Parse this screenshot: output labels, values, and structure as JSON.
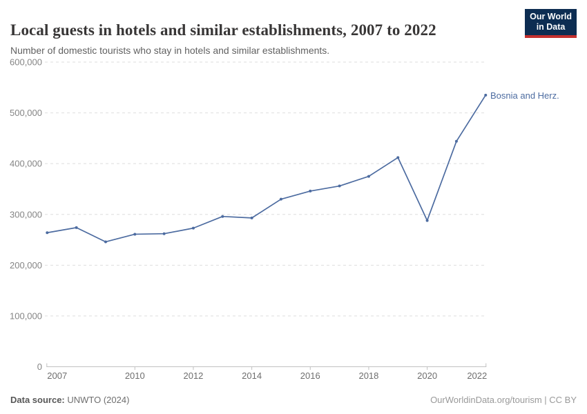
{
  "header": {
    "title": "Local guests in hotels and similar establishments, 2007 to 2022",
    "subtitle": "Number of domestic tourists who stay in hotels and similar establishments.",
    "logo": {
      "line1": "Our World",
      "line2": "in Data"
    }
  },
  "chart_data": {
    "type": "line",
    "title": "Local guests in hotels and similar establishments, 2007 to 2022",
    "x": [
      2007,
      2008,
      2009,
      2010,
      2011,
      2012,
      2013,
      2014,
      2015,
      2016,
      2017,
      2018,
      2019,
      2020,
      2021,
      2022
    ],
    "series": [
      {
        "name": "Bosnia and Herz.",
        "color": "#4C6BA0",
        "values": [
          264000,
          274000,
          246000,
          261000,
          262000,
          273000,
          296000,
          293000,
          330000,
          346000,
          356000,
          375000,
          412000,
          288000,
          444000,
          535000
        ]
      }
    ],
    "xlabel": "",
    "ylabel": "",
    "ylim": [
      0,
      600000
    ],
    "yticks": [
      0,
      100000,
      200000,
      300000,
      400000,
      500000,
      600000
    ],
    "ytick_labels": [
      "0",
      "100,000",
      "200,000",
      "300,000",
      "400,000",
      "500,000",
      "600,000"
    ],
    "xticks": [
      2007,
      2010,
      2012,
      2014,
      2016,
      2018,
      2020,
      2022
    ],
    "grid": "horizontal-dashed",
    "legend_position": "end-of-line-label"
  },
  "footer": {
    "source_label": "Data source:",
    "source_value": " UNWTO (2024)",
    "note_right": "OurWorldinData.org/tourism | CC BY"
  },
  "colors": {
    "accent": "#4C6BA0",
    "logo_bg": "#0d2d52",
    "logo_red": "#c4302e",
    "grid": "#dedede",
    "axis": "#c0c0c0",
    "title_text": "#383636",
    "subtitle_text": "#616161"
  }
}
